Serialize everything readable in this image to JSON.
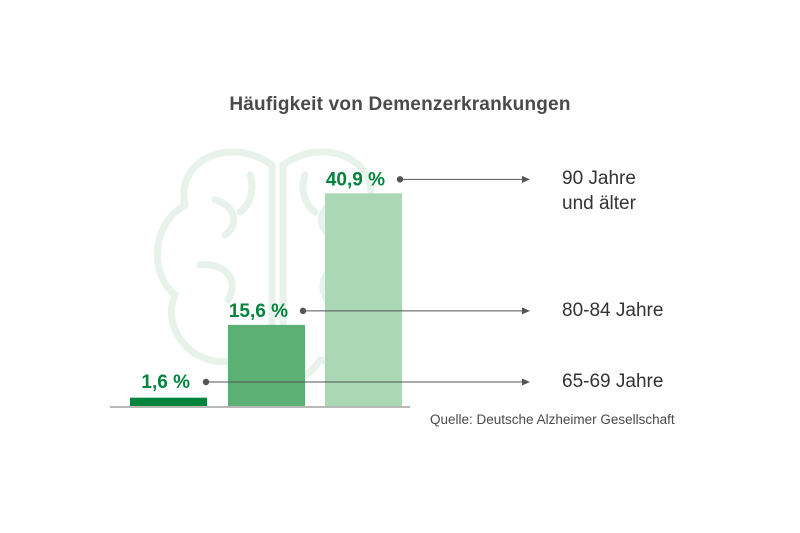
{
  "chart_data": {
    "type": "bar",
    "title": "Häufigkeit von Demenzerkrankungen",
    "categories": [
      "65-69 Jahre",
      "80-84 Jahre",
      "90 Jahre und älter"
    ],
    "category_lines": [
      [
        "65-69 Jahre"
      ],
      [
        "80-84 Jahre"
      ],
      [
        "90 Jahre",
        "und älter"
      ]
    ],
    "values": [
      1.6,
      15.6,
      40.9
    ],
    "value_labels": [
      "1,6 %",
      "15,6 %",
      "40,9 %"
    ],
    "unit": "%",
    "ylim": [
      0,
      45
    ],
    "grid": false,
    "legend": "none",
    "colors": [
      "#00843c",
      "#5cb074",
      "#aad8b5"
    ],
    "label_color": "#00843c",
    "source": "Quelle: Deutsche Alzheimer Gesellschaft"
  }
}
